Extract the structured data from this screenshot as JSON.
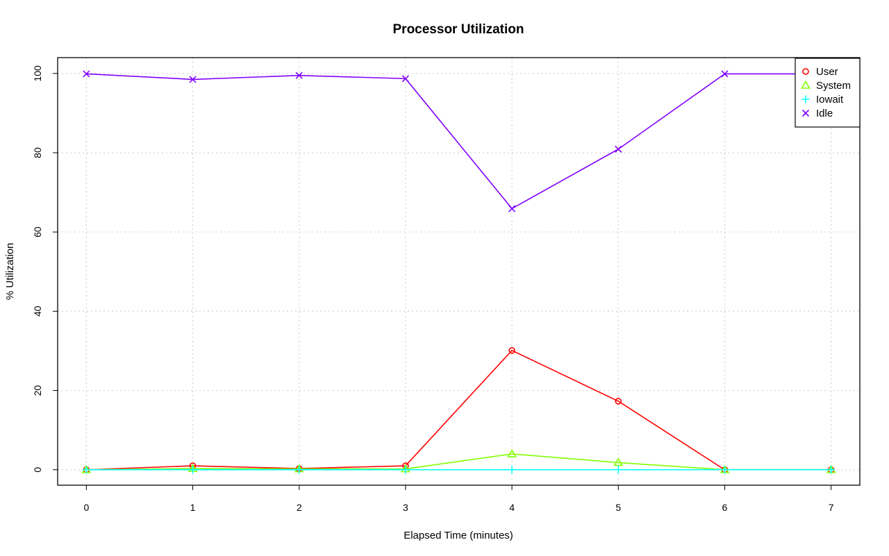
{
  "chart_data": {
    "type": "line",
    "title": "Processor Utilization",
    "xlabel": "Elapsed Time (minutes)",
    "ylabel": "% Utilization",
    "x": [
      0,
      1,
      2,
      3,
      4,
      5,
      6,
      7
    ],
    "xlim": [
      -0.27,
      7.27
    ],
    "ylim": [
      -3.9,
      104
    ],
    "x_ticks": [
      0,
      1,
      2,
      3,
      4,
      5,
      6,
      7
    ],
    "y_ticks": [
      0,
      20,
      40,
      60,
      80,
      100
    ],
    "grid": true,
    "legend_position": "top-right",
    "series": [
      {
        "name": "User",
        "color": "#ff0000",
        "marker": "circle",
        "values": [
          0,
          1,
          0.3,
          1,
          30.1,
          17.3,
          0,
          0
        ]
      },
      {
        "name": "System",
        "color": "#80ff00",
        "marker": "triangle",
        "values": [
          0,
          0.3,
          0.2,
          0.2,
          4,
          1.8,
          0,
          0
        ]
      },
      {
        "name": "Iowait",
        "color": "#00ffff",
        "marker": "plus",
        "values": [
          0,
          0,
          0,
          0,
          0,
          0,
          0,
          0
        ]
      },
      {
        "name": "Idle",
        "color": "#8000ff",
        "marker": "cross",
        "values": [
          99.9,
          98.5,
          99.5,
          98.7,
          65.9,
          80.9,
          99.9,
          99.9
        ]
      }
    ]
  }
}
